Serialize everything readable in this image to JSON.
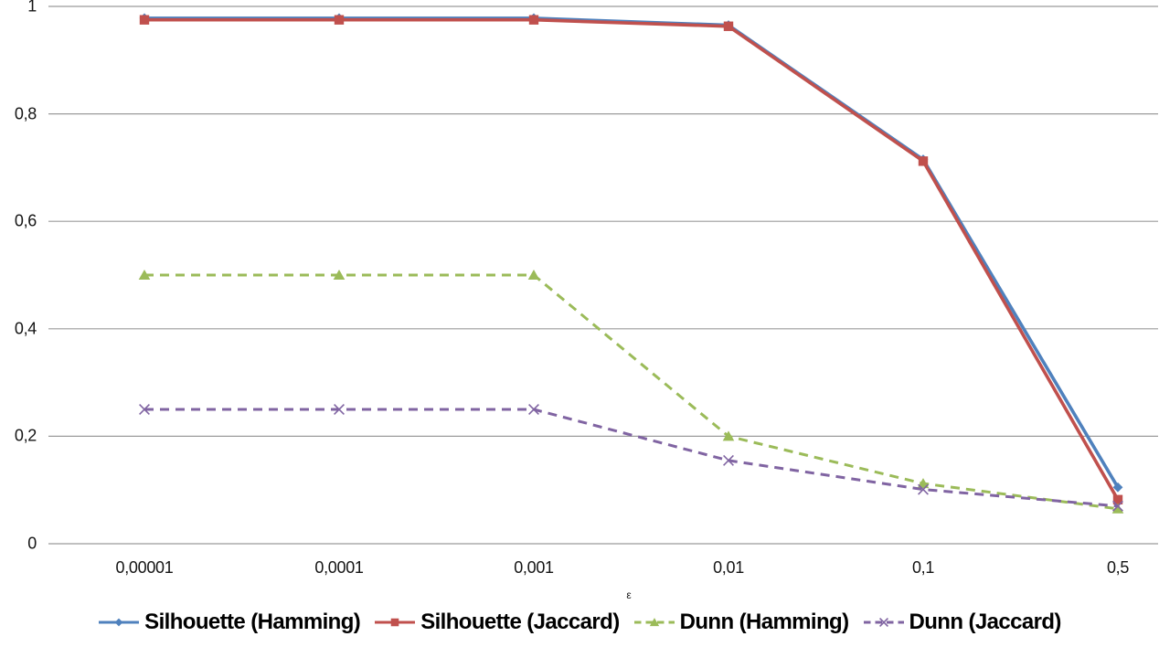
{
  "chart_data": {
    "type": "line",
    "title": "",
    "xlabel": "ε",
    "ylabel": "",
    "categories": [
      "0,00001",
      "0,0001",
      "0,001",
      "0,01",
      "0,1",
      "0,5"
    ],
    "categories_numeric": [
      1e-05,
      0.0001,
      0.001,
      0.01,
      0.1,
      0.5
    ],
    "ylim": [
      0,
      1
    ],
    "y_ticks": [
      0,
      0.2,
      0.4,
      0.6,
      0.8,
      1
    ],
    "y_tick_labels": [
      "0",
      "0,2",
      "0,4",
      "0,6",
      "0,8",
      "1"
    ],
    "grid": "horizontal",
    "gridline_color": "#9B9B9B",
    "legend_position": "bottom",
    "series": [
      {
        "name": "Silhouette (Hamming)",
        "color": "#4F81BD",
        "marker": "diamond",
        "line_style": "solid",
        "values": [
          0.978,
          0.978,
          0.978,
          0.965,
          0.715,
          0.105
        ]
      },
      {
        "name": "Silhouette (Jaccard)",
        "color": "#C0504D",
        "marker": "square",
        "line_style": "solid",
        "values": [
          0.975,
          0.975,
          0.975,
          0.963,
          0.712,
          0.082
        ]
      },
      {
        "name": "Dunn (Hamming)",
        "color": "#9BBB59",
        "marker": "triangle",
        "line_style": "dashed",
        "values": [
          0.5,
          0.5,
          0.5,
          0.2,
          0.112,
          0.065
        ]
      },
      {
        "name": "Dunn (Jaccard)",
        "color": "#8064A2",
        "marker": "x",
        "line_style": "dashed",
        "values": [
          0.25,
          0.25,
          0.25,
          0.155,
          0.101,
          0.07
        ]
      }
    ]
  }
}
